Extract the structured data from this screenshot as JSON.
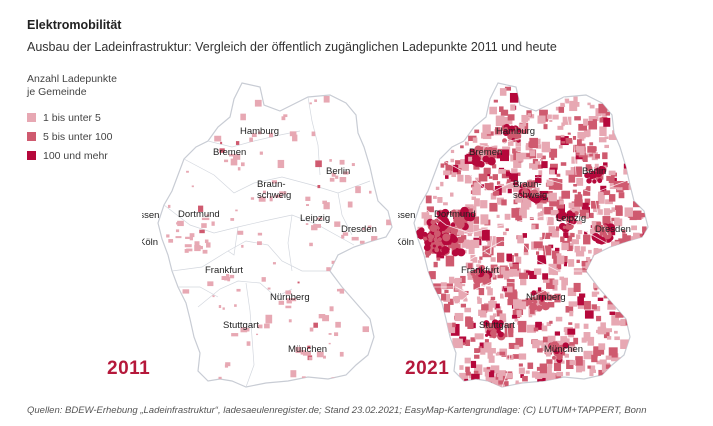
{
  "title": "Elektromobilität",
  "subtitle": "Ausbau der Ladeinfrastruktur: Vergleich der öffentlich zugänglichen Ladepunkte 2011 und heute",
  "legend": {
    "title_line1": "Anzahl Ladepunkte",
    "title_line2": "je Gemeinde",
    "items": [
      {
        "label": "1 bis unter 5",
        "color": "#e7a8b3"
      },
      {
        "label": "5 bis unter 100",
        "color": "#cf5a6f"
      },
      {
        "label": "100 und mehr",
        "color": "#b5083b"
      }
    ]
  },
  "maps": [
    {
      "year": "2011",
      "density": "low"
    },
    {
      "year": "2021",
      "density": "high"
    }
  ],
  "cities": {
    "hamburg": "Hamburg",
    "bremen": "Bremen",
    "berlin": "Berlin",
    "braunschweig_1": "Braun-",
    "braunschweig_2": "schweig",
    "essen": "Essen",
    "dortmund": "Dortmund",
    "leipzig": "Leipzig",
    "dresden": "Dresden",
    "koeln": "Köln",
    "frankfurt": "Frankfurt",
    "nuernberg": "Nürnberg",
    "stuttgart": "Stuttgart",
    "muenchen": "München"
  },
  "source": "Quellen: BDEW-Erhebung „Ladeinfrastruktur“, ladesaeulenregister.de; Stand 23.02.2021; EasyMap-Kartengrundlage: (C) LUTUM+TAPPERT, Bonn"
}
